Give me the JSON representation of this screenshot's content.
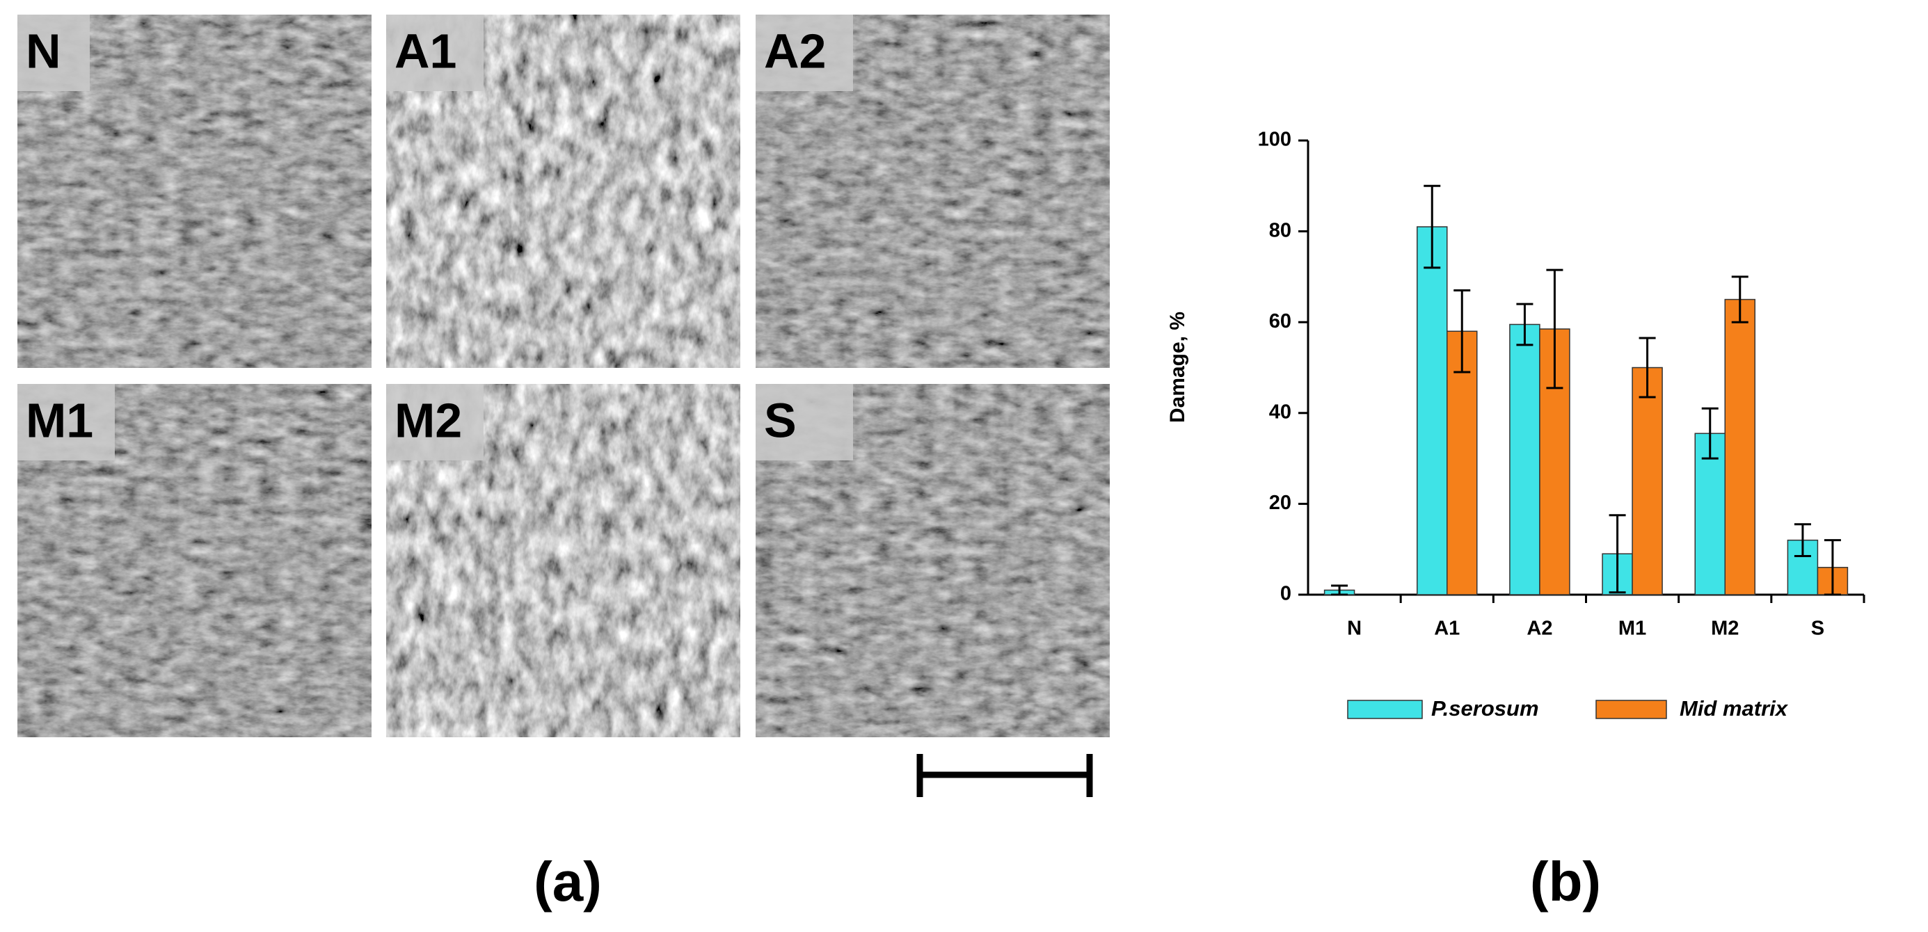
{
  "panels": {
    "a": {
      "label": "(a)",
      "images": [
        "N",
        "A1",
        "A2",
        "M1",
        "M2",
        "S"
      ]
    },
    "b": {
      "label": "(b)"
    }
  },
  "chart_data": {
    "type": "bar",
    "y_label": "Damage, %",
    "categories": [
      "N",
      "A1",
      "A2",
      "M1",
      "M2",
      "S"
    ],
    "series": [
      {
        "name": "P.serosum",
        "color": "#3fe3e6",
        "values": [
          1,
          81,
          59.5,
          9,
          35.5,
          12
        ],
        "errors": [
          1,
          9,
          4.5,
          8.5,
          5.5,
          3.5
        ]
      },
      {
        "name": "Mid matrix",
        "color": "#f5801a",
        "values": [
          0,
          58,
          58.5,
          50,
          65,
          6
        ],
        "errors": [
          null,
          9,
          13,
          6.5,
          5,
          6
        ]
      }
    ],
    "ylim": [
      0,
      100
    ],
    "yticks": [
      0,
      20,
      40,
      60,
      80,
      100
    ],
    "grid": false
  }
}
